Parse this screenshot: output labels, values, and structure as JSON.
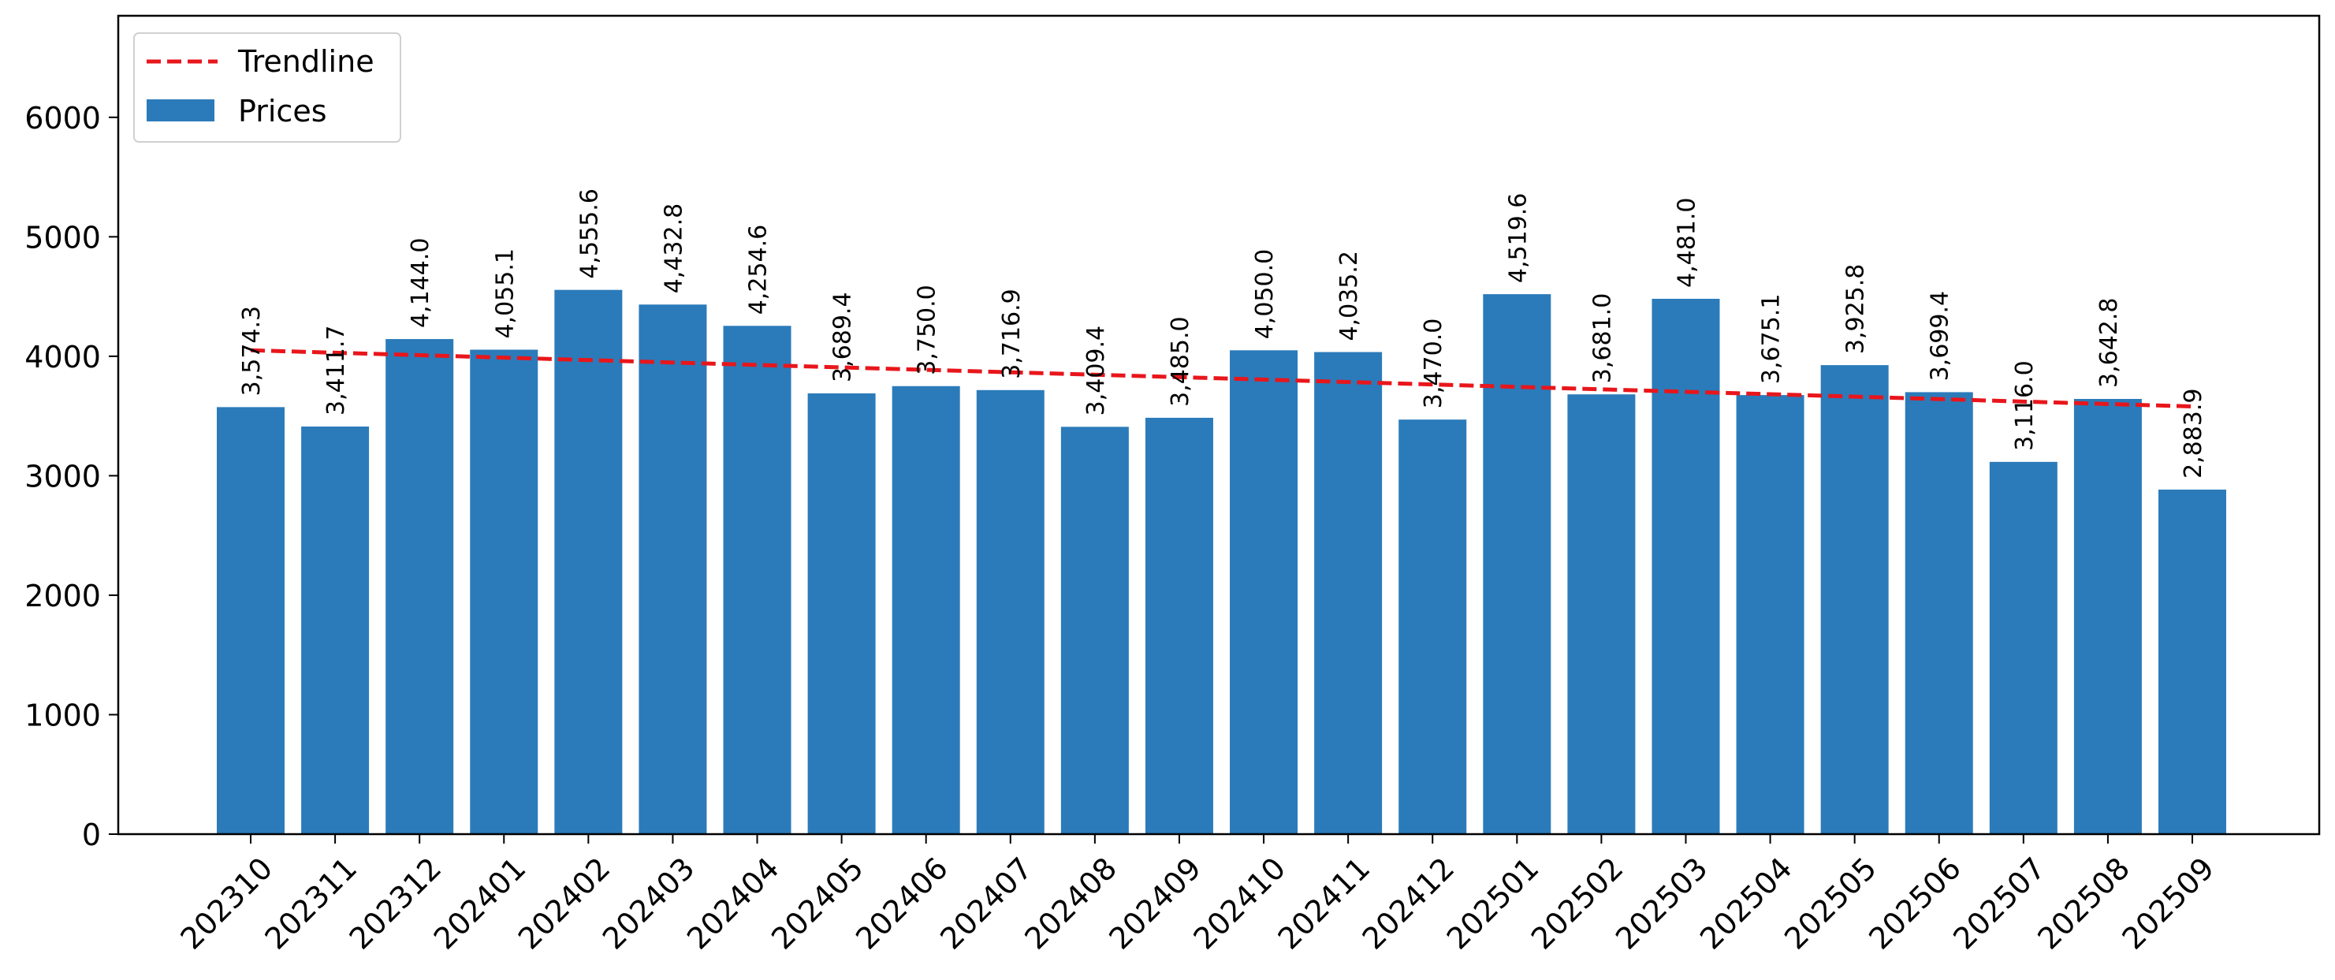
{
  "chart_data": {
    "type": "bar",
    "title": "",
    "xlabel": "",
    "ylabel": "",
    "categories": [
      "202310",
      "202311",
      "202312",
      "202401",
      "202402",
      "202403",
      "202404",
      "202405",
      "202406",
      "202407",
      "202408",
      "202409",
      "202410",
      "202411",
      "202412",
      "202501",
      "202502",
      "202503",
      "202504",
      "202505",
      "202506",
      "202507",
      "202508",
      "202509"
    ],
    "series": [
      {
        "name": "Prices",
        "type": "bar",
        "color": "#2b7bba",
        "values": [
          3574.3,
          3411.7,
          4144.0,
          4055.1,
          4555.6,
          4432.8,
          4254.6,
          3689.4,
          3750.0,
          3716.9,
          3409.4,
          3485.0,
          4050.0,
          4035.2,
          3470.0,
          4519.6,
          3681.0,
          4481.0,
          3675.1,
          3925.8,
          3699.4,
          3116.0,
          3642.8,
          2883.9
        ],
        "data_labels": [
          "3,574.3",
          "3,411.7",
          "4,144.0",
          "4,055.1",
          "4,555.6",
          "4,432.8",
          "4,254.6",
          "3,689.4",
          "3,750.0",
          "3,716.9",
          "3,409.4",
          "3,485.0",
          "4,050.0",
          "4,035.2",
          "3,470.0",
          "4,519.6",
          "3,681.0",
          "4,481.0",
          "3,675.1",
          "3,925.8",
          "3,699.4",
          "3,116.0",
          "3,642.8",
          "2,883.9"
        ]
      },
      {
        "name": "Trendline",
        "type": "line",
        "style": "dashed",
        "color": "#e8161b",
        "start_value": 4050,
        "end_value": 3580
      }
    ],
    "ylim": [
      0,
      6850
    ],
    "yticks": [
      0,
      1000,
      2000,
      3000,
      4000,
      5000,
      6000
    ],
    "grid": false,
    "legend_position": "top-left",
    "legend_order": [
      "Trendline",
      "Prices"
    ]
  }
}
